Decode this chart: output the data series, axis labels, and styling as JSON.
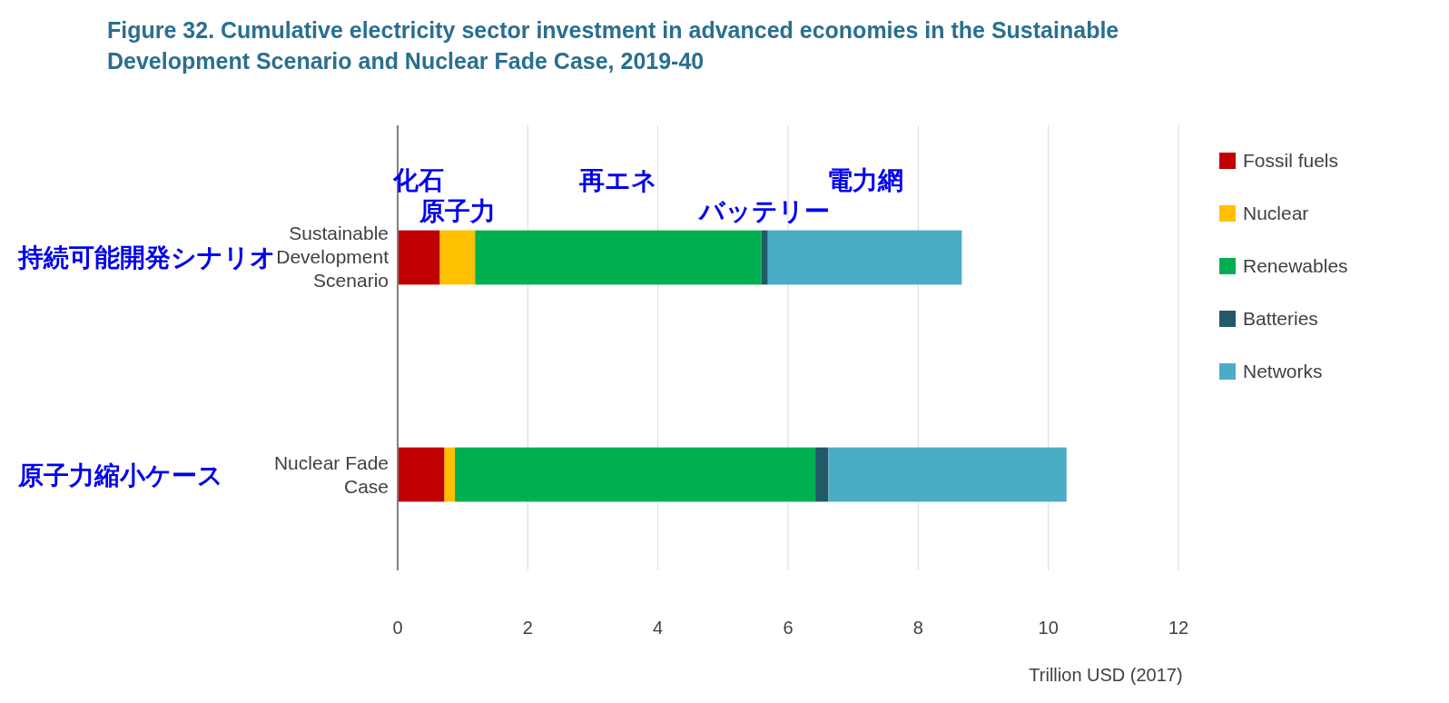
{
  "chart_data": {
    "type": "bar",
    "orientation": "horizontal",
    "stacked": true,
    "title": "Figure 32.   Cumulative electricity sector investment in advanced economies in the Sustainable Development Scenario and Nuclear Fade Case, 2019-40",
    "xlabel": "Trillion USD (2017)",
    "categories": [
      "Sustainable Development Scenario",
      "Nuclear Fade Case"
    ],
    "series": [
      {
        "name": "Fossil fuels",
        "color": "#c00000",
        "values": [
          0.65,
          0.72
        ]
      },
      {
        "name": "Nuclear",
        "color": "#ffc000",
        "values": [
          0.54,
          0.16
        ]
      },
      {
        "name": "Renewables",
        "color": "#00b050",
        "values": [
          4.4,
          5.54
        ]
      },
      {
        "name": "Batteries",
        "color": "#215968",
        "values": [
          0.1,
          0.2
        ]
      },
      {
        "name": "Networks",
        "color": "#4bacc6",
        "values": [
          2.98,
          3.66
        ]
      }
    ],
    "xlim": [
      0,
      12
    ],
    "xticks": [
      0,
      2,
      4,
      6,
      8,
      10,
      12
    ],
    "grid": "x",
    "legend": "right",
    "annotations": [
      "化石",
      "原子力",
      "再エネ",
      "バッテリー",
      "電力網",
      "持続可能開発シナリオ",
      "原子力縮小ケース"
    ]
  }
}
